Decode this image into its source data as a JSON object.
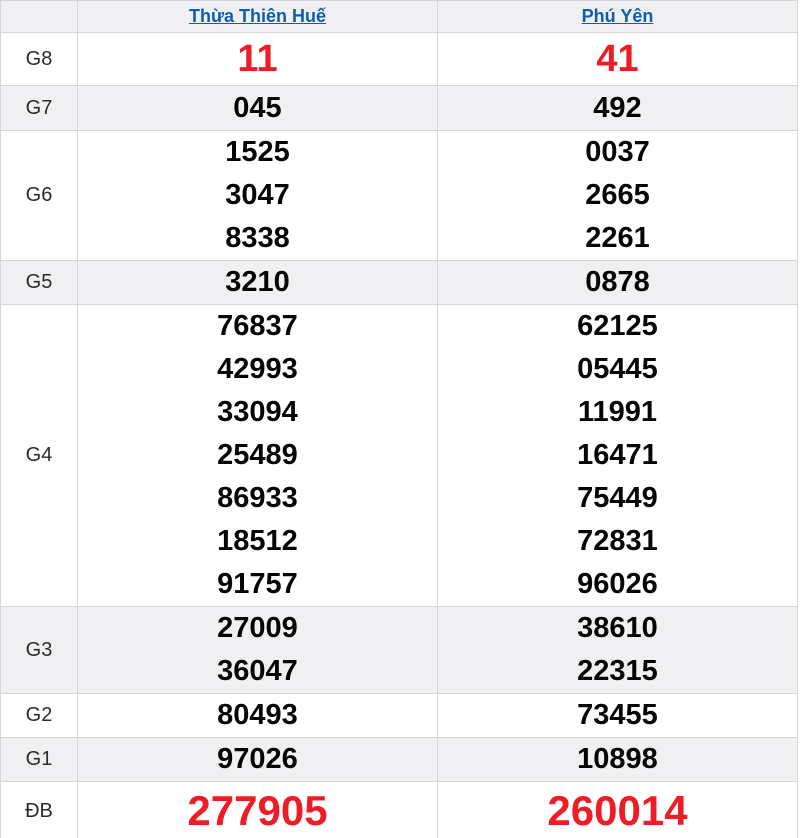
{
  "table": {
    "corner": "",
    "columns": [
      {
        "label": "Thừa Thiên Huế"
      },
      {
        "label": "Phú Yên"
      }
    ],
    "rows": [
      {
        "label": "G8",
        "hue": [
          "11"
        ],
        "phuyen": [
          "41"
        ],
        "highlight": "red"
      },
      {
        "label": "G7",
        "hue": [
          "045"
        ],
        "phuyen": [
          "492"
        ],
        "highlight": "none"
      },
      {
        "label": "G6",
        "hue": [
          "1525",
          "3047",
          "8338"
        ],
        "phuyen": [
          "0037",
          "2665",
          "2261"
        ],
        "highlight": "none"
      },
      {
        "label": "G5",
        "hue": [
          "3210"
        ],
        "phuyen": [
          "0878"
        ],
        "highlight": "none"
      },
      {
        "label": "G4",
        "hue": [
          "76837",
          "42993",
          "33094",
          "25489",
          "86933",
          "18512",
          "91757"
        ],
        "phuyen": [
          "62125",
          "05445",
          "11991",
          "16471",
          "75449",
          "72831",
          "96026"
        ],
        "highlight": "none"
      },
      {
        "label": "G3",
        "hue": [
          "27009",
          "36047"
        ],
        "phuyen": [
          "38610",
          "22315"
        ],
        "highlight": "none"
      },
      {
        "label": "G2",
        "hue": [
          "80493"
        ],
        "phuyen": [
          "73455"
        ],
        "highlight": "none"
      },
      {
        "label": "G1",
        "hue": [
          "97026"
        ],
        "phuyen": [
          "10898"
        ],
        "highlight": "none"
      },
      {
        "label": "ĐB",
        "hue": [
          "277905"
        ],
        "phuyen": [
          "260014"
        ],
        "highlight": "red-large"
      }
    ],
    "colors": {
      "link_blue": "#0d5fae",
      "highlight_red": "#ee1c25",
      "stripe_bg": "#f0eff1",
      "border": "#d6d5d8",
      "number_black": "#050505"
    }
  }
}
